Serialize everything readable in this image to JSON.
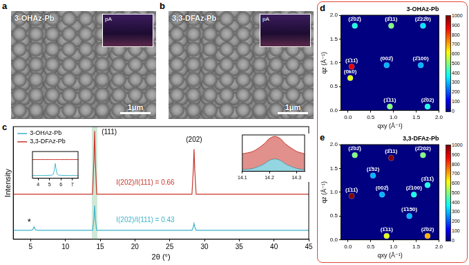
{
  "images": [
    {
      "panel": "a",
      "label": "3-OHAz-Pb",
      "scale_bar": "1μm",
      "inset_unit": "pA"
    },
    {
      "panel": "b",
      "label": "3,3-DFAz-Pb",
      "scale_bar": "1μm",
      "inset_unit": "pA"
    }
  ],
  "chart_data": [
    {
      "panel": "c",
      "type": "line",
      "x_label": "2θ (°)",
      "y_label": "Intensity",
      "xlim": [
        2.5,
        45
      ],
      "xticks": [
        5,
        10,
        15,
        20,
        25,
        30,
        35,
        40,
        45
      ],
      "ylim": [
        0,
        100
      ],
      "tick_labels": "x",
      "grid": false,
      "legend": "top-left",
      "x": [
        2.5,
        5,
        5.3,
        5.5,
        5.7,
        6,
        10,
        13.9,
        14.1,
        14.2,
        14.3,
        14.5,
        20,
        28.2,
        28.4,
        28.5,
        28.6,
        28.8,
        35,
        45
      ],
      "series": [
        {
          "name": "3-OHAz-Pb",
          "color": "#3bb3c9",
          "values": [
            8,
            8,
            8.5,
            11,
            8.5,
            8,
            8,
            8,
            18,
            30,
            18,
            8,
            8,
            8,
            11,
            14,
            11,
            8,
            8,
            8
          ]
        },
        {
          "name": "3,3-DFAz-Pb",
          "color": "#c9342b",
          "values": [
            40,
            40,
            40,
            40,
            40,
            40,
            40,
            40,
            70,
            96,
            70,
            40,
            40,
            40,
            62,
            80,
            62,
            40,
            40,
            40
          ]
        }
      ],
      "highlight_range": [
        13.8,
        14.6
      ],
      "annotations": [
        {
          "text": "(111)",
          "x": 16.3,
          "y": 95
        },
        {
          "text": "(202)",
          "x": 28.5,
          "y": 88
        },
        {
          "text": "I(202)/I(111) = 0.66",
          "x": 21.5,
          "y": 50,
          "color": "#c9342b"
        },
        {
          "text": "I(202)/I(111) = 0.43",
          "x": 21.5,
          "y": 17,
          "color": "#3bb3c9"
        },
        {
          "text": "*",
          "x": 4.8,
          "y": 15
        }
      ],
      "insets": [
        {
          "type": "line",
          "xlim": [
            3.5,
            7.5
          ],
          "xticks": [
            4,
            5,
            6,
            7
          ],
          "ylim": [
            0,
            100
          ],
          "tick_labels": "x",
          "grid": false,
          "x": [
            3.5,
            5,
            5.3,
            5.45,
            5.5,
            5.55,
            5.7,
            6,
            7.5
          ],
          "series": [
            {
              "color": "#3bb3c9",
              "values": [
                10,
                11,
                14,
                40,
                55,
                40,
                14,
                11,
                10
              ]
            },
            {
              "color": "#c9342b",
              "values": [
                70,
                70,
                70,
                70,
                70,
                70,
                70,
                70,
                70
              ]
            }
          ]
        },
        {
          "type": "area",
          "xlim": [
            14.1,
            14.33
          ],
          "xticks": [
            14.1,
            14.2,
            14.3
          ],
          "ylim": [
            0,
            100
          ],
          "tick_labels": "x",
          "grid": false,
          "x": [
            14.1,
            14.14,
            14.18,
            14.2,
            14.22,
            14.24,
            14.26,
            14.3,
            14.33
          ],
          "series": [
            {
              "color": "#c9342b",
              "values": [
                48,
                55,
                75,
                90,
                96,
                90,
                75,
                55,
                48
              ]
            },
            {
              "color": "#3bb3c9",
              "values": [
                5,
                8,
                20,
                30,
                34,
                30,
                20,
                8,
                5
              ]
            }
          ]
        }
      ]
    },
    {
      "panel": "d",
      "type": "scatter",
      "title": "3-OHAz-Pb",
      "x_label": "qxy (Å⁻¹)",
      "y_label": "qz (Å⁻¹)",
      "grid": false,
      "xlim": [
        -0.15,
        2.0
      ],
      "xticks": [
        {
          "value": 0,
          "label": "0.0"
        },
        {
          "value": 0.5,
          "label": "0.5"
        },
        {
          "value": 1,
          "label": "1.0"
        },
        {
          "value": 1.5,
          "label": "1.5"
        },
        {
          "value": 2,
          "label": "2.0"
        }
      ],
      "ylim": [
        0,
        2.0
      ],
      "yticks": [
        {
          "value": 0,
          "label": "0.0"
        },
        {
          "value": 0.5,
          "label": "0.5"
        },
        {
          "value": 1,
          "label": "1.0"
        },
        {
          "value": 1.5,
          "label": "1.5"
        },
        {
          "value": 2,
          "label": "2.0"
        }
      ],
      "x": [
        0.15,
        0.95,
        1.65,
        0.08,
        0.05,
        0.85,
        1.6,
        0.92,
        1.75
      ],
      "values": [
        1.78,
        1.78,
        1.78,
        0.92,
        0.68,
        0.95,
        0.95,
        0.08,
        0.08
      ],
      "intensity": [
        400,
        500,
        350,
        900,
        600,
        300,
        300,
        500,
        400
      ],
      "point_labels": [
        "(2̄02̄)",
        "(3̄11)",
        "(2̄22̄0)",
        "(1̄11̄)",
        "(0k0)",
        "(002̄)",
        "(2̄100)",
        "(1̄11)",
        "(2̄02)"
      ],
      "colorbar_range": [
        0,
        1000
      ],
      "colorbar_ticks": [
        0,
        100,
        200,
        300,
        400,
        500,
        600,
        700,
        800,
        900,
        1000
      ]
    },
    {
      "panel": "e",
      "type": "scatter",
      "title": "3,3-DFAz-Pb",
      "x_label": "qxy (Å⁻¹)",
      "y_label": "qz (Å⁻¹)",
      "grid": false,
      "xlim": [
        -0.15,
        2.0
      ],
      "xticks": [
        {
          "value": 0,
          "label": "0.0"
        },
        {
          "value": 0.5,
          "label": "0.5"
        },
        {
          "value": 1,
          "label": "1.0"
        },
        {
          "value": 1.5,
          "label": "1.5"
        },
        {
          "value": 2,
          "label": "2.0"
        }
      ],
      "ylim": [
        0,
        2.0
      ],
      "yticks": [
        {
          "value": 0,
          "label": "0.0"
        },
        {
          "value": 0.5,
          "label": "0.5"
        },
        {
          "value": 1,
          "label": "1.0"
        },
        {
          "value": 1.5,
          "label": "1.5"
        },
        {
          "value": 2,
          "label": "2.0"
        }
      ],
      "x": [
        0.15,
        0.95,
        1.65,
        0.55,
        0.08,
        0.75,
        1.45,
        1.75,
        1.35,
        0.85,
        1.75
      ],
      "values": [
        1.78,
        1.72,
        1.78,
        1.35,
        0.92,
        0.95,
        0.95,
        1.15,
        0.5,
        0.08,
        0.08
      ],
      "intensity": [
        500,
        1000,
        500,
        300,
        1000,
        300,
        400,
        400,
        300,
        600,
        700
      ],
      "point_labels": [
        "(2̄02̄)",
        "(3̄11)",
        "(2̄202)",
        "(1̄52)",
        "(1̄11̄)",
        "(002̄)",
        "(2̄100)",
        "(3̄11̄)",
        "(1̄150)",
        "(1̄11)",
        "(2̄02)"
      ],
      "colorbar_range": [
        0,
        1000
      ],
      "colorbar_ticks": [
        0,
        100,
        200,
        300,
        400,
        500,
        600,
        700,
        800,
        900,
        1000
      ]
    }
  ]
}
